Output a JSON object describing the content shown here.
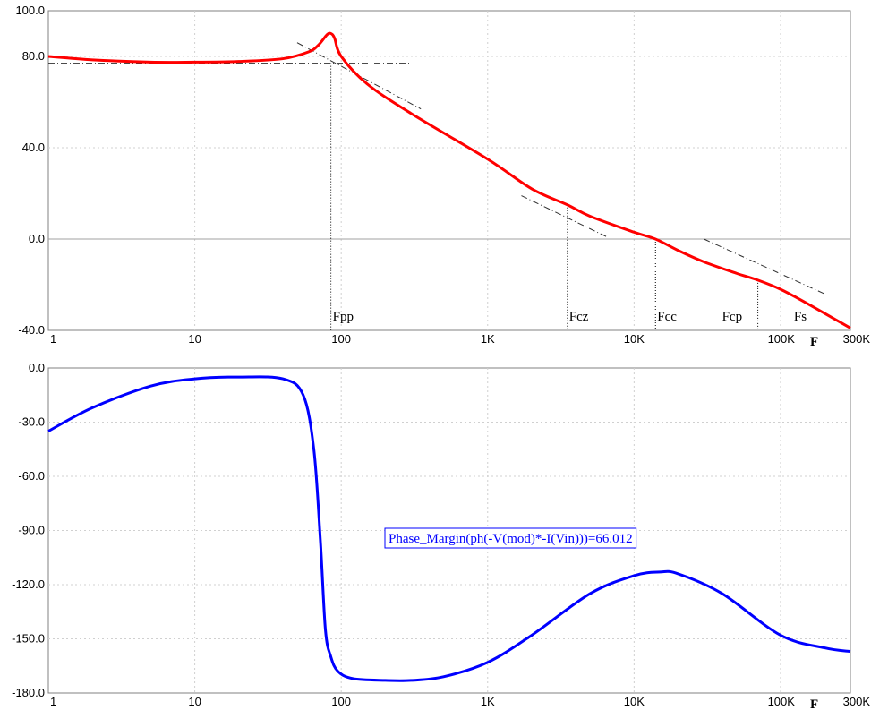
{
  "chart_data": [
    {
      "type": "line",
      "title": "",
      "xlabel": "F",
      "ylabel": "",
      "x_scale": "log",
      "xlim": [
        1,
        300000
      ],
      "ylim": [
        -40,
        100
      ],
      "yticks": [
        "100.0",
        "80.0",
        "40.0",
        "0.0",
        "-40.0"
      ],
      "ytick_values": [
        100,
        80,
        40,
        0,
        -40
      ],
      "xticks": [
        "1",
        "10",
        "100",
        "1K",
        "10K",
        "100K",
        "300K"
      ],
      "xtick_values": [
        1,
        10,
        100,
        1000,
        10000,
        100000,
        300000
      ],
      "grid": true,
      "series": [
        {
          "color": "#ff0000",
          "x": [
            1,
            2,
            5,
            10,
            20,
            40,
            60,
            70,
            80,
            85,
            90,
            100,
            150,
            300,
            1000,
            2000,
            3500,
            5000,
            10000,
            14000,
            20000,
            30000,
            50000,
            70000,
            100000,
            150000,
            300000
          ],
          "y": [
            80,
            78.5,
            77.5,
            77.5,
            77.8,
            79,
            82,
            85,
            89.5,
            90,
            88,
            80,
            68,
            55,
            35,
            22,
            15,
            10,
            3,
            0,
            -5,
            -10,
            -15,
            -18,
            -22,
            -28,
            -39
          ]
        }
      ],
      "annotations": [
        {
          "label": "Fpp",
          "x": 85
        },
        {
          "label": "Fcz",
          "x": 3500
        },
        {
          "label": "Fcc",
          "x": 14000
        },
        {
          "label": "Fcp",
          "x": 70000
        },
        {
          "label": "Fs",
          "x": 120000
        }
      ],
      "asymptotes": [
        {
          "x": [
            1,
            300
          ],
          "y": [
            77,
            77
          ]
        },
        {
          "x": [
            50,
            350
          ],
          "y": [
            86,
            57
          ]
        },
        {
          "x": [
            1700,
            6500
          ],
          "y": [
            19,
            1
          ]
        },
        {
          "x": [
            30000,
            200000
          ],
          "y": [
            0,
            -24
          ]
        }
      ]
    },
    {
      "type": "line",
      "title": "",
      "xlabel": "F",
      "ylabel": "",
      "x_scale": "log",
      "xlim": [
        1,
        300000
      ],
      "ylim": [
        -180,
        0
      ],
      "yticks": [
        "0.0",
        "-30.0",
        "-60.0",
        "-90.0",
        "-120.0",
        "-150.0",
        "-180.0"
      ],
      "ytick_values": [
        0,
        -30,
        -60,
        -90,
        -120,
        -150,
        -180
      ],
      "xticks": [
        "1",
        "10",
        "100",
        "1K",
        "10K",
        "100K",
        "300K"
      ],
      "xtick_values": [
        1,
        10,
        100,
        1000,
        10000,
        100000,
        300000
      ],
      "grid": true,
      "series": [
        {
          "color": "#0000ff",
          "x": [
            1,
            2,
            5,
            10,
            20,
            40,
            55,
            65,
            72,
            78,
            85,
            95,
            120,
            200,
            300,
            500,
            1000,
            2000,
            5000,
            10000,
            15000,
            20000,
            40000,
            100000,
            200000,
            300000
          ],
          "y": [
            -35,
            -22,
            -10,
            -6,
            -5,
            -6,
            -15,
            -45,
            -95,
            -145,
            -160,
            -168,
            -172,
            -173,
            -173,
            -171,
            -163,
            -148,
            -125,
            -115,
            -113,
            -114,
            -125,
            -148,
            -155,
            -157
          ]
        }
      ],
      "annotation_text": "Phase_Margin(ph(-V(mod)*-I(Vin)))=66.012"
    }
  ]
}
